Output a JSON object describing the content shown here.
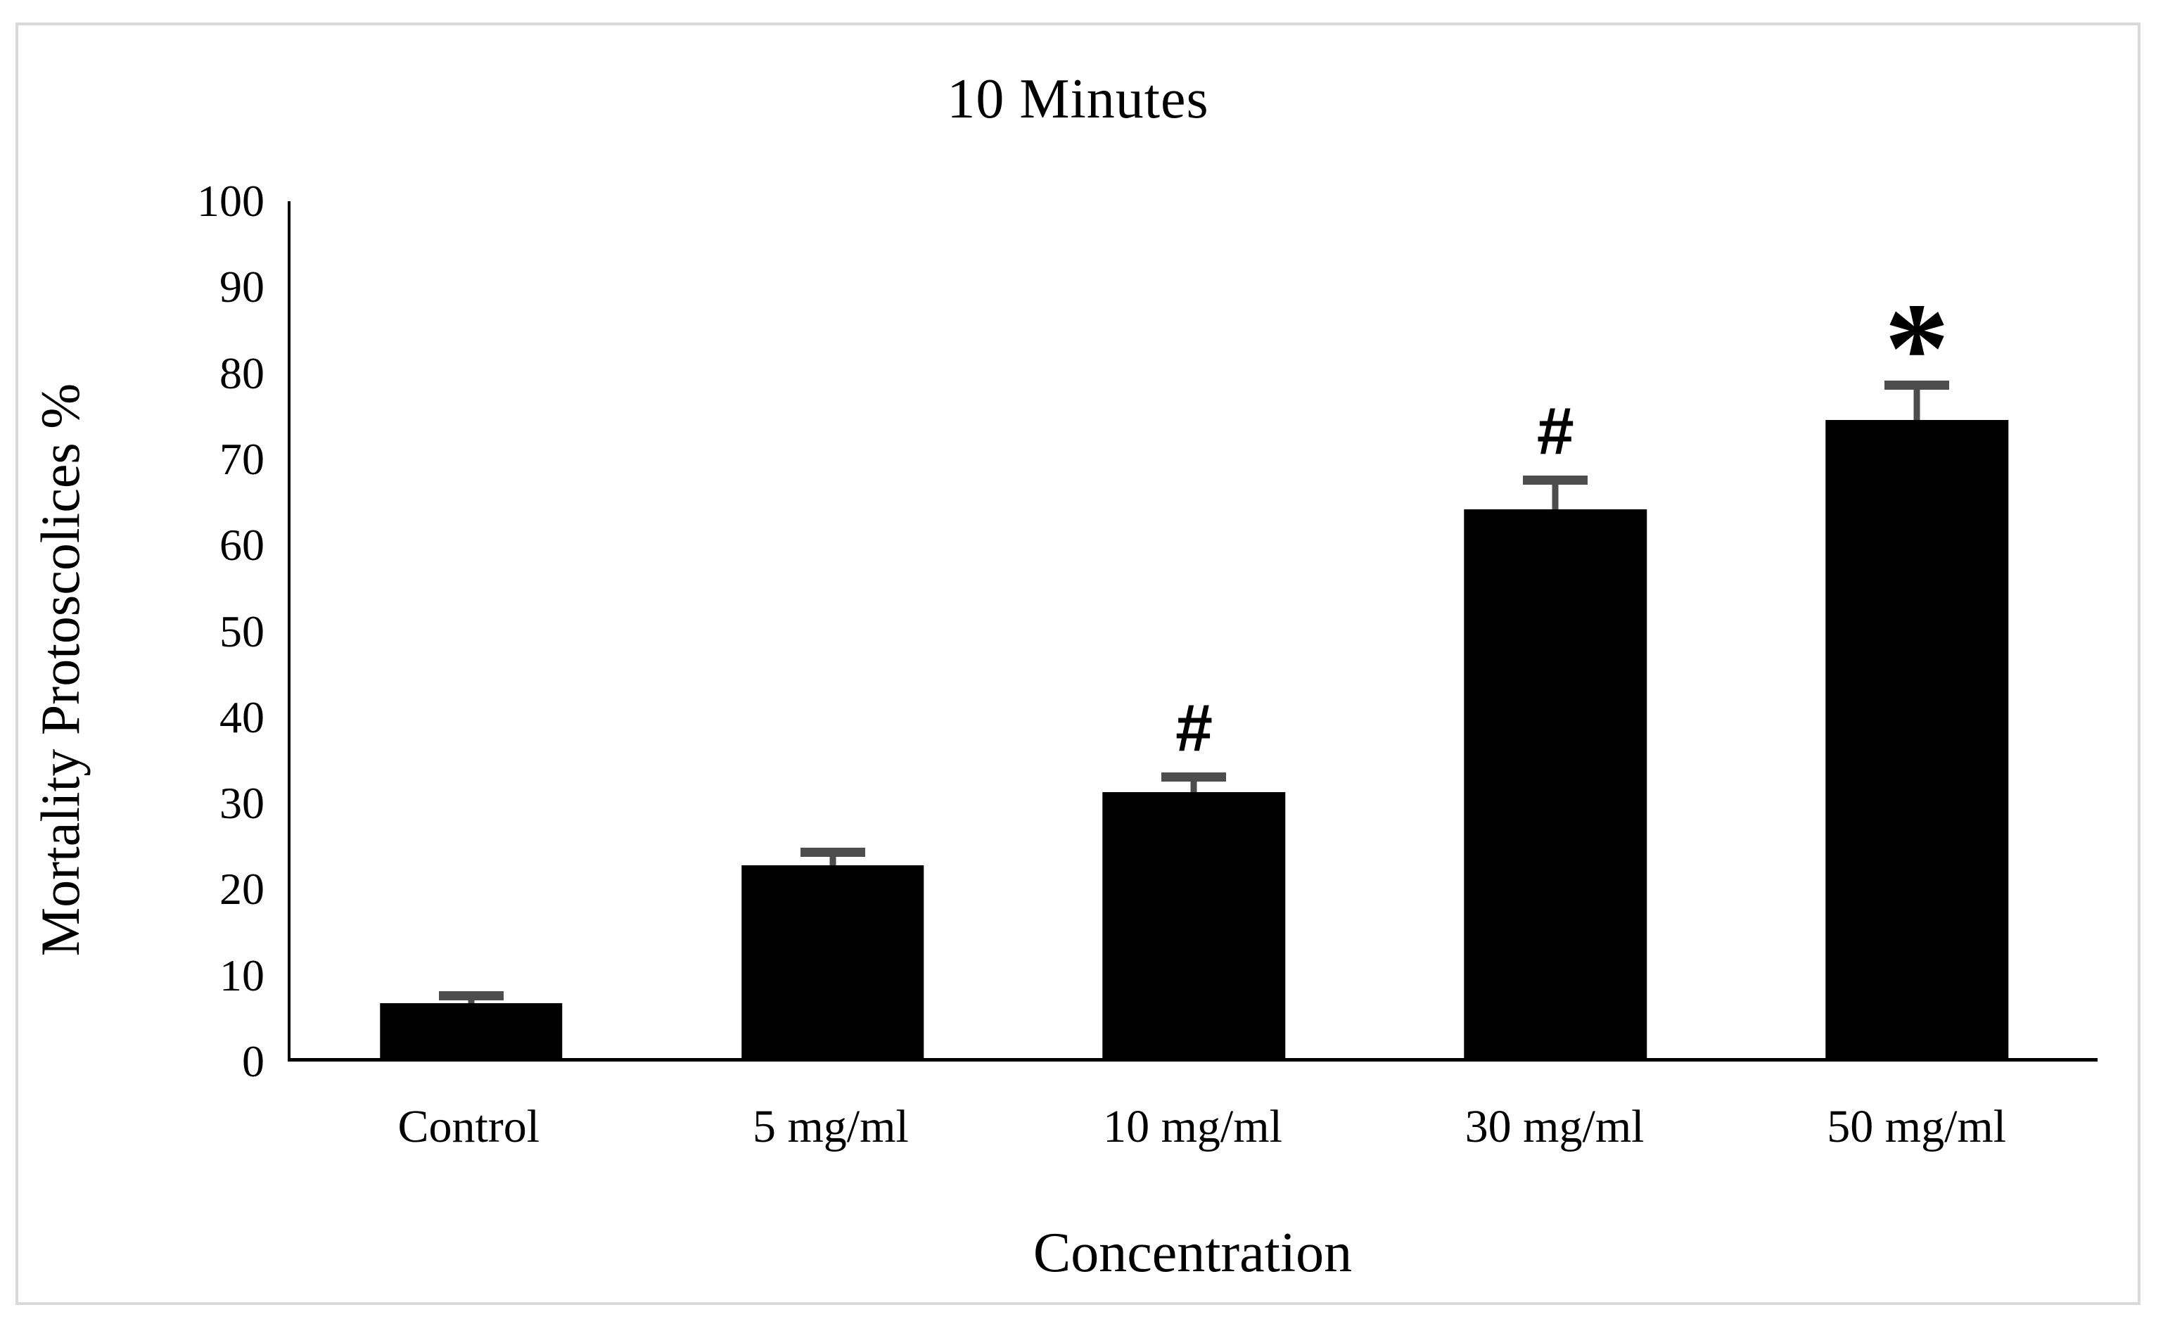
{
  "figure": {
    "background": "#ffffff",
    "border_color": "#d9d9d9",
    "bar_color": "#000000",
    "error_bar_color": "#4d4d4d",
    "axis_color": "#000000"
  },
  "chart_data": {
    "type": "bar",
    "title": "10 Minutes",
    "xlabel": "Concentration",
    "ylabel": "Mortality Protoscolices %",
    "categories": [
      "Control",
      "5 mg/ml",
      "10 mg/ml",
      "30 mg/ml",
      "50 mg/ml"
    ],
    "values": [
      6.4,
      22.5,
      31,
      64,
      74.5
    ],
    "errors": [
      0.8,
      1.5,
      1.8,
      3.4,
      4
    ],
    "annotations": [
      "",
      "",
      "#",
      "#",
      "*"
    ],
    "ylim": [
      0,
      100
    ],
    "yticks": [
      0,
      10,
      20,
      30,
      40,
      50,
      60,
      70,
      80,
      90,
      100
    ],
    "grid": false,
    "legend": null
  }
}
